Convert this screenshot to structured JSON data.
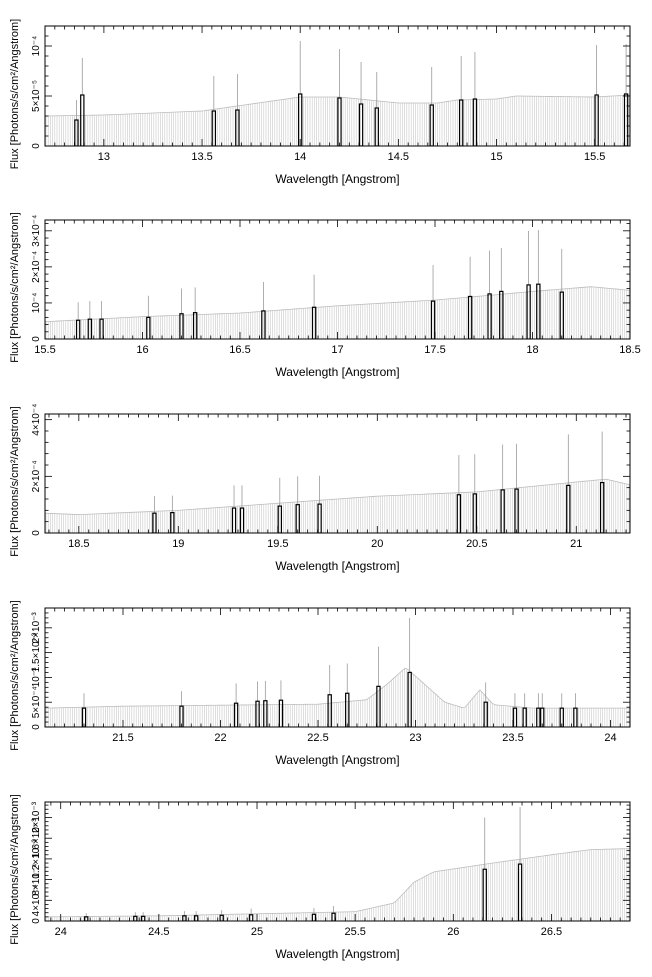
{
  "chart_data": [
    {
      "type": "bar",
      "xlabel": "Wavelength [Angstrom]",
      "ylabel": "Flux [Photons/s/cm²/Angstrom]",
      "xlim": [
        12.7,
        15.68
      ],
      "ylim": [
        0,
        0.00012
      ],
      "x_ticks": [
        13,
        13.5,
        14,
        14.5,
        15,
        15.5
      ],
      "y_ticks": [
        {
          "v": 0,
          "label": "0"
        },
        {
          "v": 5e-05,
          "label": "5×10⁻⁵"
        },
        {
          "v": 0.0001,
          "label": "10⁻⁴"
        }
      ],
      "continuum": [
        [
          12.7,
          3e-05
        ],
        [
          13.0,
          3.1e-05
        ],
        [
          13.5,
          3.5e-05
        ],
        [
          14.0,
          4.9e-05
        ],
        [
          14.2,
          4.9e-05
        ],
        [
          14.5,
          4.3e-05
        ],
        [
          14.7,
          4.3e-05
        ],
        [
          14.8,
          4.6e-05
        ],
        [
          15.0,
          4.7e-05
        ],
        [
          15.1,
          5e-05
        ],
        [
          15.5,
          4.9e-05
        ],
        [
          15.68,
          5.1e-05
        ]
      ],
      "lines": [
        {
          "x": 12.86,
          "y": 2.6e-05,
          "err": 2e-05
        },
        {
          "x": 12.89,
          "y": 5.1e-05,
          "err": 3.7e-05
        },
        {
          "x": 13.56,
          "y": 3.5e-05,
          "err": 3.5e-05
        },
        {
          "x": 13.68,
          "y": 3.6e-05,
          "err": 3.6e-05
        },
        {
          "x": 14.0,
          "y": 5.2e-05,
          "err": 5.3e-05
        },
        {
          "x": 14.2,
          "y": 4.8e-05,
          "err": 4.9e-05
        },
        {
          "x": 14.31,
          "y": 4.2e-05,
          "err": 4.2e-05
        },
        {
          "x": 14.39,
          "y": 3.8e-05,
          "err": 3.6e-05
        },
        {
          "x": 14.67,
          "y": 4.1e-05,
          "err": 3.8e-05
        },
        {
          "x": 14.82,
          "y": 4.6e-05,
          "err": 4.4e-05
        },
        {
          "x": 14.89,
          "y": 4.7e-05,
          "err": 4.7e-05
        },
        {
          "x": 15.51,
          "y": 5.1e-05,
          "err": 5e-05
        },
        {
          "x": 15.66,
          "y": 5.2e-05,
          "err": 5e-05
        }
      ]
    },
    {
      "type": "bar",
      "xlabel": "Wavelength [Angstrom]",
      "ylabel": "Flux [Photons/s/cm²/Angstrom]",
      "xlim": [
        15.5,
        18.5
      ],
      "ylim": [
        0,
        0.00033
      ],
      "x_ticks": [
        15.5,
        16,
        16.5,
        17,
        17.5,
        18,
        18.5
      ],
      "y_ticks": [
        {
          "v": 0,
          "label": "0"
        },
        {
          "v": 0.0001,
          "label": "10⁻⁴"
        },
        {
          "v": 0.0002,
          "label": "2×10⁻⁴"
        },
        {
          "v": 0.0003,
          "label": "3×10⁻⁴"
        }
      ],
      "continuum": [
        [
          15.5,
          4.8e-05
        ],
        [
          16.0,
          6.2e-05
        ],
        [
          16.5,
          7.2e-05
        ],
        [
          17.0,
          9.2e-05
        ],
        [
          17.5,
          0.000108
        ],
        [
          17.8,
          0.000122
        ],
        [
          18.0,
          0.000132
        ],
        [
          18.3,
          0.000145
        ],
        [
          18.5,
          0.000135
        ]
      ],
      "lines": [
        {
          "x": 15.67,
          "y": 5.2e-05,
          "err": 5e-05
        },
        {
          "x": 15.73,
          "y": 5.5e-05,
          "err": 5e-05
        },
        {
          "x": 15.79,
          "y": 5.5e-05,
          "err": 5e-05
        },
        {
          "x": 16.03,
          "y": 6e-05,
          "err": 6e-05
        },
        {
          "x": 16.2,
          "y": 7e-05,
          "err": 7e-05
        },
        {
          "x": 16.27,
          "y": 7.3e-05,
          "err": 7e-05
        },
        {
          "x": 16.62,
          "y": 7.8e-05,
          "err": 8e-05
        },
        {
          "x": 16.88,
          "y": 8.8e-05,
          "err": 9e-05
        },
        {
          "x": 17.49,
          "y": 0.000105,
          "err": 0.0001
        },
        {
          "x": 17.68,
          "y": 0.000118,
          "err": 0.00011
        },
        {
          "x": 17.78,
          "y": 0.000125,
          "err": 0.00012
        },
        {
          "x": 17.84,
          "y": 0.000132,
          "err": 0.00012
        },
        {
          "x": 17.98,
          "y": 0.00015,
          "err": 0.00015
        },
        {
          "x": 18.03,
          "y": 0.000152,
          "err": 0.00015
        },
        {
          "x": 18.15,
          "y": 0.00013,
          "err": 0.00012
        }
      ]
    },
    {
      "type": "bar",
      "xlabel": "Wavelength [Angstrom]",
      "ylabel": "Flux [Photons/s/cm²/Angstrom]",
      "xlim": [
        18.33,
        21.27
      ],
      "ylim": [
        0,
        0.00042
      ],
      "x_ticks": [
        18.5,
        19,
        19.5,
        20,
        20.5,
        21
      ],
      "y_ticks": [
        {
          "v": 0,
          "label": "0"
        },
        {
          "v": 0.0002,
          "label": "2×10⁻⁴"
        },
        {
          "v": 0.0004,
          "label": "4×10⁻⁴"
        }
      ],
      "continuum": [
        [
          18.33,
          7e-05
        ],
        [
          18.5,
          6.5e-05
        ],
        [
          19.0,
          8e-05
        ],
        [
          19.5,
          0.000105
        ],
        [
          20.0,
          0.00013
        ],
        [
          20.5,
          0.000145
        ],
        [
          21.0,
          0.00018
        ],
        [
          21.15,
          0.00019
        ],
        [
          21.27,
          0.00017
        ]
      ],
      "lines": [
        {
          "x": 18.88,
          "y": 7e-05,
          "err": 6e-05
        },
        {
          "x": 18.97,
          "y": 7.2e-05,
          "err": 6e-05
        },
        {
          "x": 19.28,
          "y": 8.8e-05,
          "err": 8e-05
        },
        {
          "x": 19.32,
          "y": 8.8e-05,
          "err": 8e-05
        },
        {
          "x": 19.51,
          "y": 9.5e-05,
          "err": 0.0001
        },
        {
          "x": 19.6,
          "y": 0.0001,
          "err": 0.0001
        },
        {
          "x": 19.71,
          "y": 0.000102,
          "err": 0.0001
        },
        {
          "x": 20.41,
          "y": 0.000135,
          "err": 0.00014
        },
        {
          "x": 20.49,
          "y": 0.000138,
          "err": 0.00014
        },
        {
          "x": 20.63,
          "y": 0.000152,
          "err": 0.00016
        },
        {
          "x": 20.7,
          "y": 0.000155,
          "err": 0.00016
        },
        {
          "x": 20.96,
          "y": 0.000168,
          "err": 0.00018
        },
        {
          "x": 21.13,
          "y": 0.000178,
          "err": 0.00018
        }
      ]
    },
    {
      "type": "bar",
      "xlabel": "Wavelength [Angstrom]",
      "ylabel": "Flux [Photons/s/cm²/Angstrom]",
      "xlim": [
        21.1,
        24.1
      ],
      "ylim": [
        0,
        0.0024
      ],
      "x_ticks": [
        21.5,
        22,
        22.5,
        23,
        23.5,
        24
      ],
      "y_ticks": [
        {
          "v": 0,
          "label": "0"
        },
        {
          "v": 0.0005,
          "label": "5×10⁻⁴"
        },
        {
          "v": 0.001,
          "label": "10⁻³"
        },
        {
          "v": 0.0015,
          "label": "1.5×10⁻³"
        },
        {
          "v": 0.002,
          "label": "2×10⁻³"
        }
      ],
      "continuum": [
        [
          21.1,
          0.00038
        ],
        [
          21.5,
          0.00042
        ],
        [
          22.0,
          0.00044
        ],
        [
          22.5,
          0.00046
        ],
        [
          22.75,
          0.00055
        ],
        [
          22.85,
          0.00085
        ],
        [
          22.95,
          0.0012
        ],
        [
          23.05,
          0.00085
        ],
        [
          23.15,
          0.0005
        ],
        [
          23.25,
          0.00038
        ],
        [
          23.33,
          0.00075
        ],
        [
          23.4,
          0.00045
        ],
        [
          23.6,
          0.00038
        ],
        [
          24.1,
          0.00038
        ]
      ],
      "lines": [
        {
          "x": 21.3,
          "y": 0.00038,
          "err": 0.0003
        },
        {
          "x": 21.8,
          "y": 0.00042,
          "err": 0.0003
        },
        {
          "x": 22.08,
          "y": 0.00048,
          "err": 0.0004
        },
        {
          "x": 22.19,
          "y": 0.00052,
          "err": 0.0004
        },
        {
          "x": 22.23,
          "y": 0.00053,
          "err": 0.0004
        },
        {
          "x": 22.31,
          "y": 0.00054,
          "err": 0.0004
        },
        {
          "x": 22.56,
          "y": 0.00065,
          "err": 0.0006
        },
        {
          "x": 22.65,
          "y": 0.00068,
          "err": 0.0006
        },
        {
          "x": 22.81,
          "y": 0.00082,
          "err": 0.0008
        },
        {
          "x": 22.97,
          "y": 0.0011,
          "err": 0.0011
        },
        {
          "x": 23.36,
          "y": 0.0005,
          "err": 0.0004
        },
        {
          "x": 23.51,
          "y": 0.00038,
          "err": 0.0003
        },
        {
          "x": 23.56,
          "y": 0.00038,
          "err": 0.0003
        },
        {
          "x": 23.63,
          "y": 0.00038,
          "err": 0.0003
        },
        {
          "x": 23.65,
          "y": 0.00038,
          "err": 0.0003
        },
        {
          "x": 23.75,
          "y": 0.00038,
          "err": 0.0003
        },
        {
          "x": 23.82,
          "y": 0.00038,
          "err": 0.0003
        }
      ]
    },
    {
      "type": "bar",
      "xlabel": "Wavelength [Angstrom]",
      "ylabel": "Flux [Photons/s/cm²/Angstrom]",
      "xlim": [
        23.92,
        26.9
      ],
      "ylim": [
        0,
        0.0023
      ],
      "x_ticks": [
        24,
        24.5,
        25,
        25.5,
        26,
        26.5
      ],
      "y_ticks": [
        {
          "v": 0,
          "label": "0"
        },
        {
          "v": 0.0004,
          "label": "4×10⁻⁴"
        },
        {
          "v": 0.0008,
          "label": "8×10⁻⁴"
        },
        {
          "v": 0.0012,
          "label": "1.2×10⁻³"
        },
        {
          "v": 0.0016,
          "label": "1.6×10⁻³"
        },
        {
          "v": 0.002,
          "label": "2×10⁻³"
        }
      ],
      "continuum": [
        [
          23.92,
          8e-05
        ],
        [
          24.5,
          0.0001
        ],
        [
          25.0,
          0.00014
        ],
        [
          25.5,
          0.00018
        ],
        [
          25.7,
          0.00035
        ],
        [
          25.8,
          0.00075
        ],
        [
          25.9,
          0.00095
        ],
        [
          26.2,
          0.00112
        ],
        [
          26.5,
          0.00128
        ],
        [
          26.7,
          0.00138
        ],
        [
          26.9,
          0.0014
        ]
      ],
      "lines": [
        {
          "x": 24.13,
          "y": 8e-05,
          "err": 7e-05
        },
        {
          "x": 24.38,
          "y": 9e-05,
          "err": 8e-05
        },
        {
          "x": 24.42,
          "y": 9e-05,
          "err": 8e-05
        },
        {
          "x": 24.63,
          "y": 0.0001,
          "err": 9e-05
        },
        {
          "x": 24.69,
          "y": 0.0001,
          "err": 9e-05
        },
        {
          "x": 24.82,
          "y": 0.00011,
          "err": 0.0001
        },
        {
          "x": 24.97,
          "y": 0.00012,
          "err": 0.00012
        },
        {
          "x": 25.29,
          "y": 0.00013,
          "err": 0.00012
        },
        {
          "x": 25.39,
          "y": 0.00015,
          "err": 0.00014
        },
        {
          "x": 26.16,
          "y": 0.001,
          "err": 0.001
        },
        {
          "x": 26.34,
          "y": 0.0011,
          "err": 0.0011
        }
      ]
    }
  ]
}
